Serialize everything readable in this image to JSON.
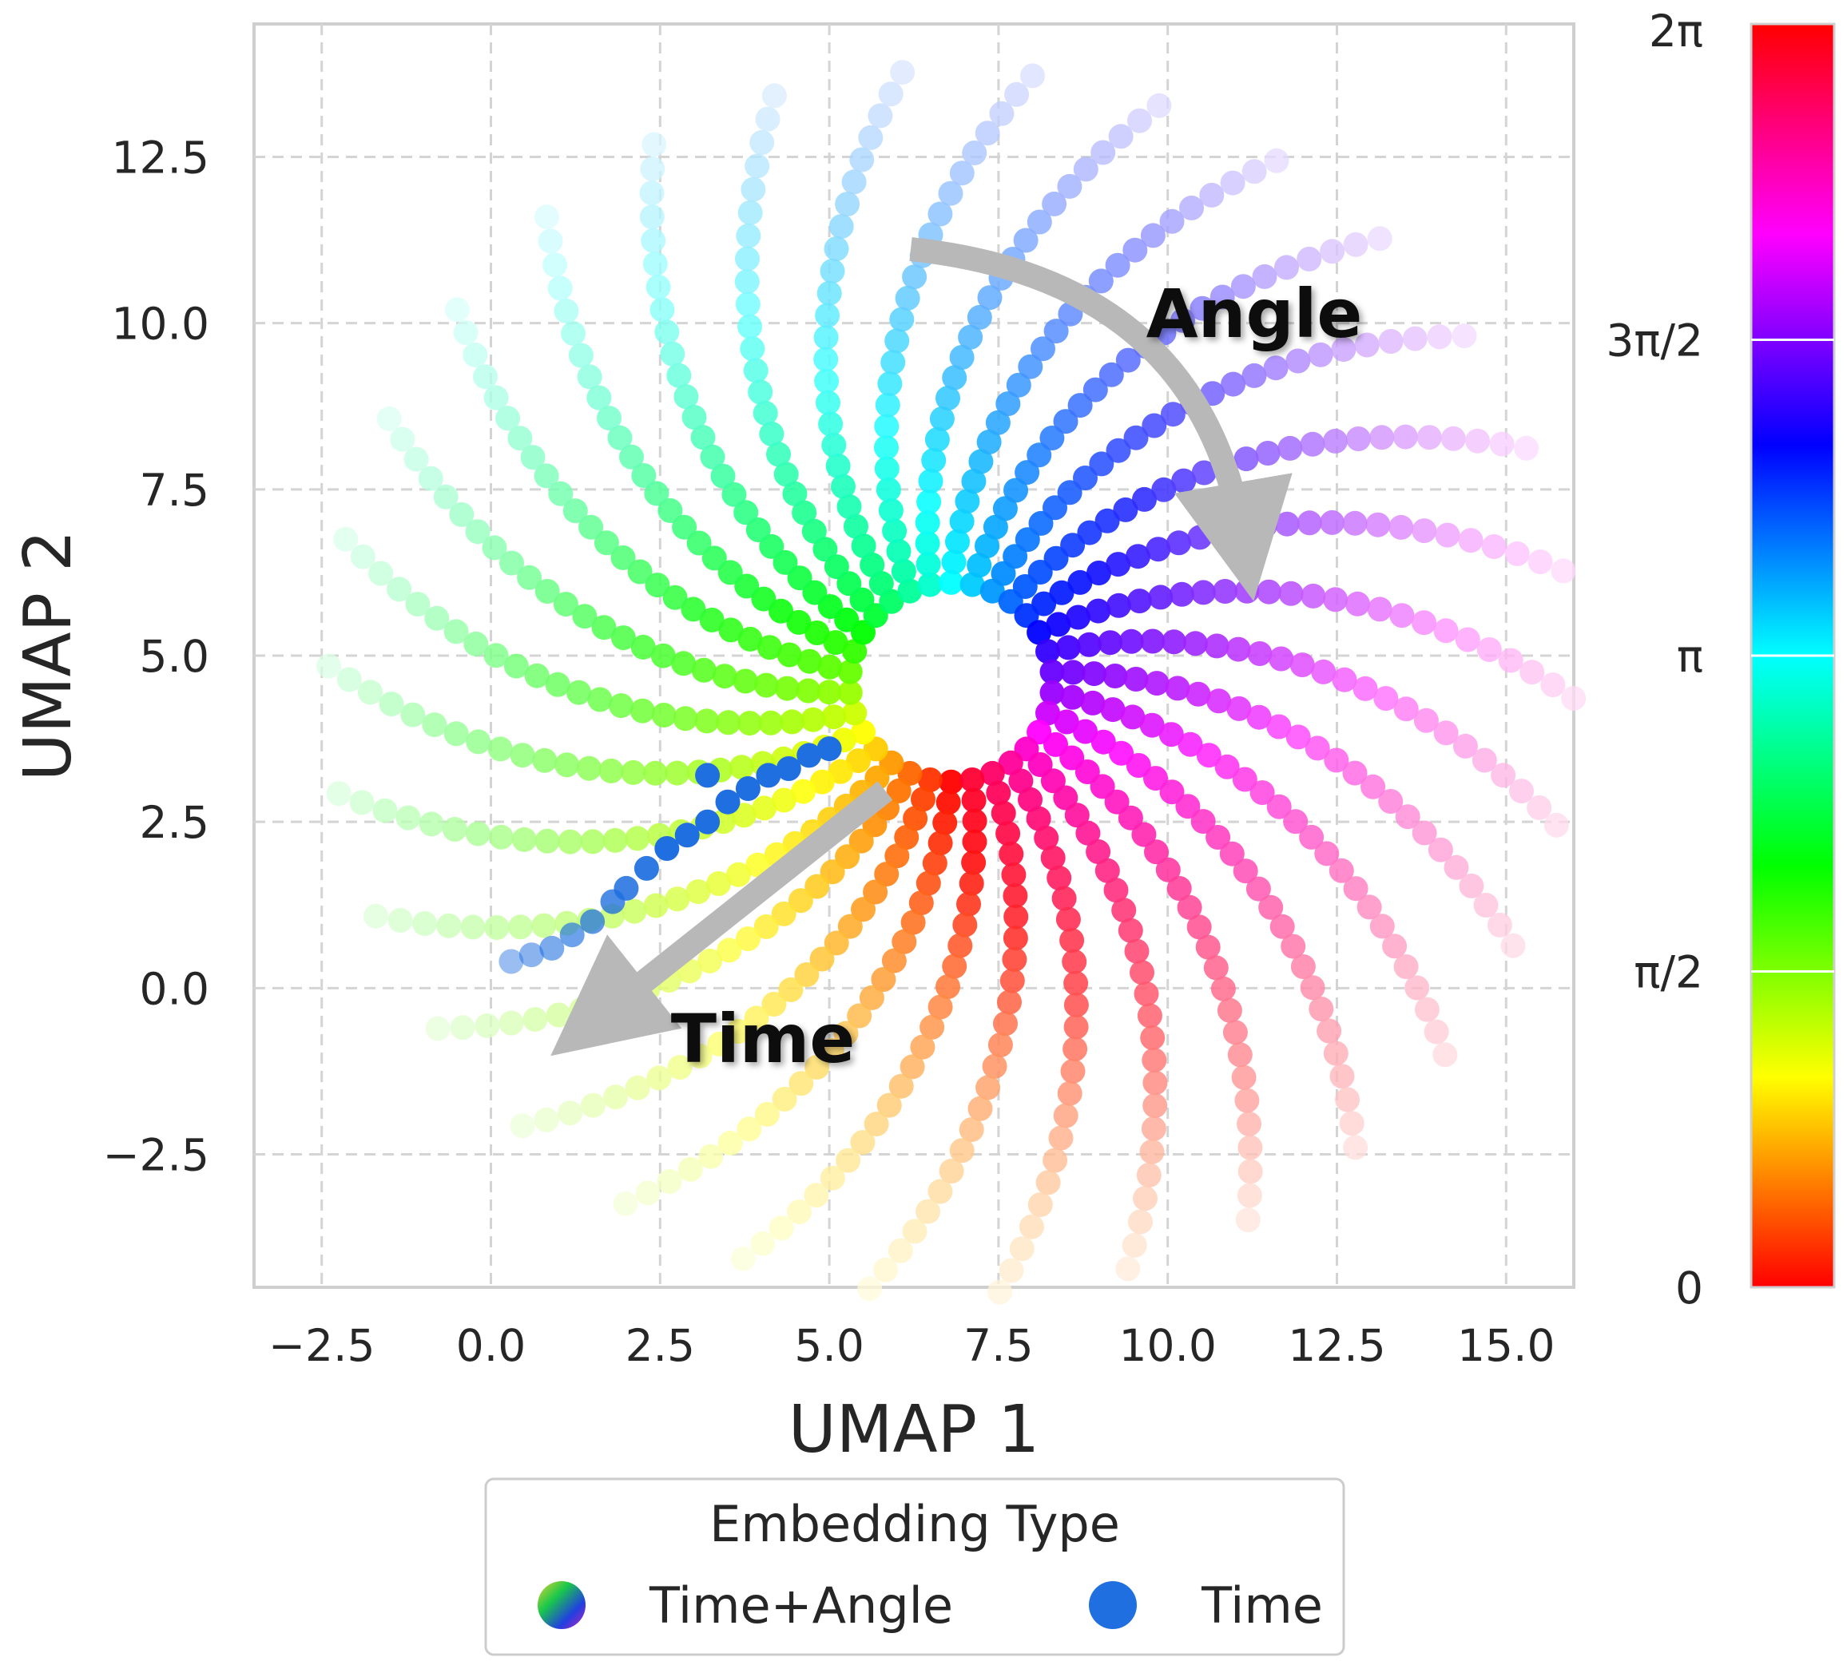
{
  "chart_data": {
    "type": "scatter",
    "title": "",
    "xlabel": "UMAP 1",
    "ylabel": "UMAP 2",
    "xlim": [
      -3.5,
      16.0
    ],
    "ylim": [
      -4.5,
      14.5
    ],
    "x_ticks": [
      -2.5,
      0.0,
      2.5,
      5.0,
      7.5,
      10.0,
      12.5,
      15.0
    ],
    "x_tick_labels": [
      "−2.5",
      "0.0",
      "2.5",
      "5.0",
      "7.5",
      "10.0",
      "12.5",
      "15.0"
    ],
    "y_ticks": [
      -2.5,
      0.0,
      2.5,
      5.0,
      7.5,
      10.0,
      12.5
    ],
    "y_tick_labels": [
      "−2.5",
      "0.0",
      "2.5",
      "5.0",
      "7.5",
      "10.0",
      "12.5"
    ],
    "grid": true,
    "colorbar": {
      "colormap": "hsv",
      "range": [
        0,
        6.2832
      ],
      "tick_values": [
        0,
        1.5708,
        3.1416,
        4.7124,
        6.2832
      ],
      "tick_labels": [
        "0",
        "π/2",
        "π",
        "3π/2",
        "2π"
      ]
    },
    "spiral_cluster": {
      "name": "Time+Angle",
      "center": [
        6.8,
        4.6
      ],
      "radius_range": [
        1.5,
        9.2
      ],
      "arms": 30,
      "points_per_arm": 26
    },
    "series": [
      {
        "name": "Time",
        "color": "#1f6fe0",
        "points": [
          [
            0.3,
            0.4
          ],
          [
            0.6,
            0.5
          ],
          [
            0.9,
            0.6
          ],
          [
            1.2,
            0.8
          ],
          [
            1.5,
            1.0
          ],
          [
            1.8,
            1.3
          ],
          [
            2.0,
            1.5
          ],
          [
            2.3,
            1.8
          ],
          [
            2.6,
            2.1
          ],
          [
            2.9,
            2.3
          ],
          [
            3.2,
            2.5
          ],
          [
            3.5,
            2.8
          ],
          [
            3.8,
            3.0
          ],
          [
            4.1,
            3.2
          ],
          [
            4.4,
            3.3
          ],
          [
            4.7,
            3.5
          ],
          [
            5.0,
            3.6
          ],
          [
            3.2,
            3.2
          ]
        ]
      }
    ],
    "annotations": [
      {
        "text": "Angle",
        "x": 11.2,
        "y": 10.0
      },
      {
        "text": "Time",
        "x": 4.2,
        "y": -0.9
      }
    ],
    "legend": {
      "title": "Embedding Type",
      "placement": "bottom-center",
      "entries": [
        "Time+Angle",
        "Time"
      ]
    }
  }
}
